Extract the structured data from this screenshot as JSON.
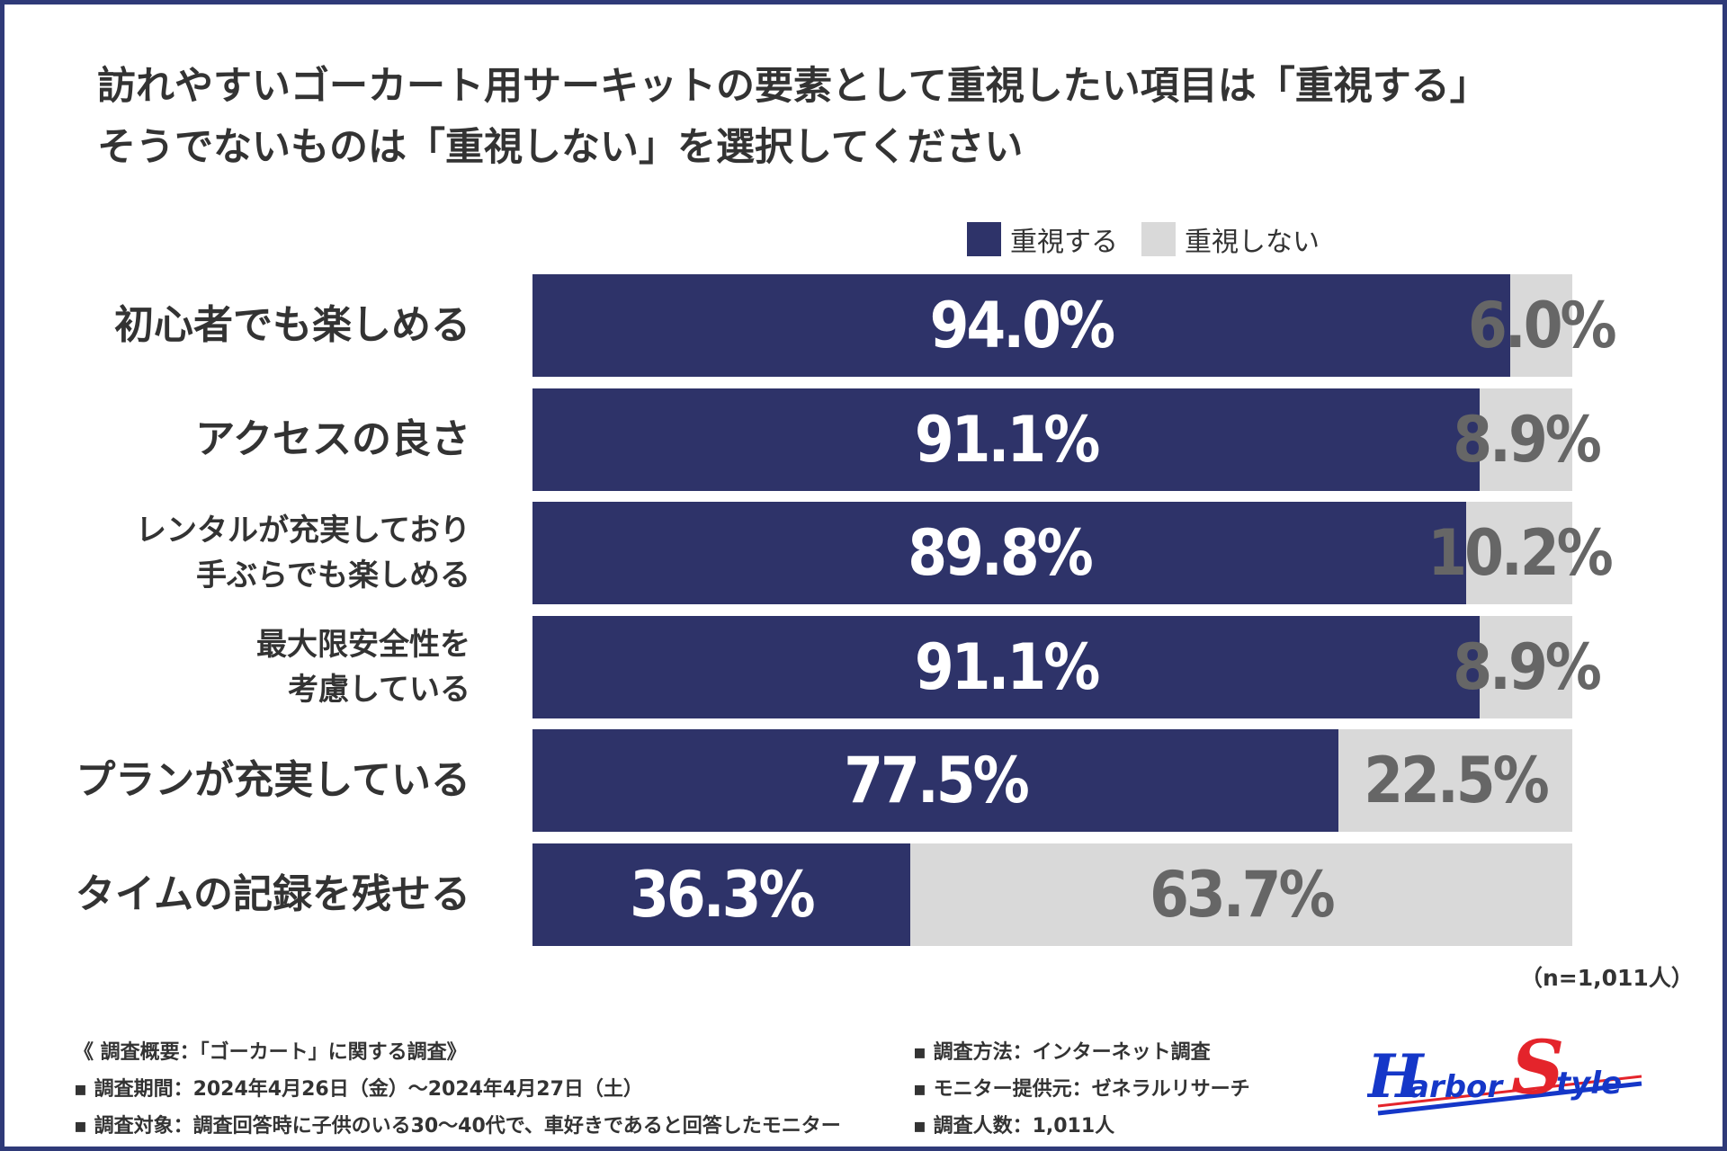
{
  "title": {
    "line1": "訪れやすいゴーカート用サーキットの要素として重視したい項目は「重視する」",
    "line2": "そうでないものは「重視しない」を選択してください"
  },
  "legend": {
    "yes_label": "重視する",
    "no_label": "重視しない"
  },
  "colors": {
    "yes": "#2e3369",
    "no": "#d9d9d9",
    "frame": "#2f3a78",
    "text": "#333333"
  },
  "chart_data": {
    "type": "bar",
    "orientation": "horizontal",
    "stacked": true,
    "categories": [
      [
        "初心者でも楽しめる"
      ],
      [
        "アクセスの良さ"
      ],
      [
        "レンタルが充実しており",
        "手ぶらでも楽しめる"
      ],
      [
        "最大限安全性を",
        "考慮している"
      ],
      [
        "プランが充実している"
      ],
      [
        "タイムの記録を残せる"
      ]
    ],
    "series": [
      {
        "name": "重視する",
        "values": [
          94.0,
          91.1,
          89.8,
          91.1,
          77.5,
          36.3
        ],
        "labels": [
          "94.0%",
          "91.1%",
          "89.8%",
          "91.1%",
          "77.5%",
          "36.3%"
        ]
      },
      {
        "name": "重視しない",
        "values": [
          6.0,
          8.9,
          10.2,
          8.9,
          22.5,
          63.7
        ],
        "labels": [
          "6.0%",
          "8.9%",
          "10.2%",
          "8.9%",
          "22.5%",
          "63.7%"
        ]
      }
    ],
    "xlim": [
      0,
      100
    ],
    "unit": "%"
  },
  "note": "（n=1,011人）",
  "footer": {
    "left": [
      "《 調査概要：「ゴーカート」に関する調査》",
      "▪ 調査期間：2024年4月26日（金）〜2024年4月27日（土）",
      "▪ 調査対象：調査回答時に子供のいる30〜40代で、車好きであると回答したモニター"
    ],
    "right": [
      "▪ 調査方法：インターネット調査",
      "▪ モニター提供元：ゼネラルリサーチ",
      "▪ 調査人数：1,011人"
    ]
  },
  "logo": {
    "text": "Harbor Style",
    "colors": [
      "#1537c8",
      "#e4242b"
    ]
  }
}
